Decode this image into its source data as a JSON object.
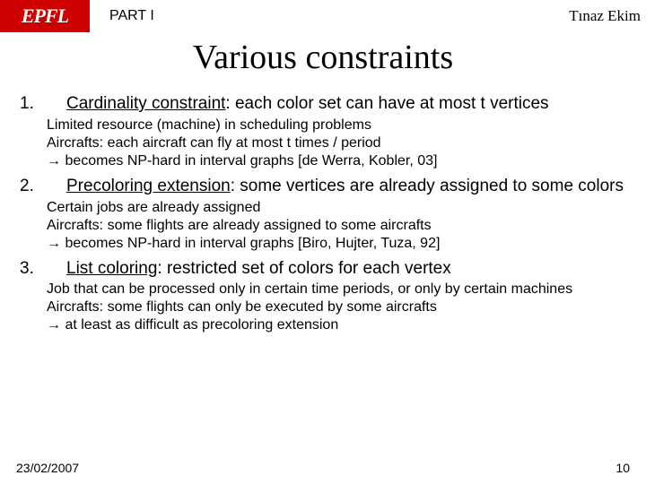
{
  "header": {
    "logo_text": "EPFL",
    "part": "PART I",
    "author": "Tınaz Ekim"
  },
  "title": "Various constraints",
  "items": [
    {
      "num": "1.",
      "term": "Cardinality constraint",
      "rest": ": each color set can have at most t vertices",
      "sub1": "Limited resource (machine) in scheduling problems",
      "sub2": "Aircrafts: each aircraft can fly at most t times / period",
      "sub3": "→ becomes NP-hard in interval graphs [de Werra, Kobler, 03]"
    },
    {
      "num": "2.",
      "term": "Precoloring extension",
      "rest": ": some vertices are already assigned to some colors",
      "sub1": "Certain jobs are already assigned",
      "sub2": "Aircrafts: some flights are already assigned to some aircrafts",
      "sub3": "→ becomes NP-hard in interval graphs [Biro, Hujter, Tuza, 92]"
    },
    {
      "num": "3.",
      "term": "List coloring",
      "rest": ": restricted set of colors for each vertex",
      "sub1": "Job that can be processed only in certain time periods, or only by certain machines",
      "sub2": "Aircrafts: some flights can only be executed by some aircrafts",
      "sub3": "→ at least as difficult as precoloring extension"
    }
  ],
  "footer": {
    "date": "23/02/2007",
    "page": "10"
  }
}
